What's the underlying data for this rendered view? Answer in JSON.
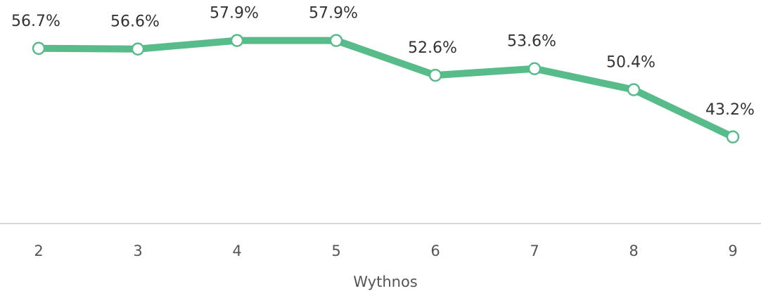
{
  "chart_data": {
    "type": "line",
    "categories": [
      "2",
      "3",
      "4",
      "5",
      "6",
      "7",
      "8",
      "9"
    ],
    "values": [
      56.7,
      56.6,
      57.9,
      57.9,
      52.6,
      53.6,
      50.4,
      43.2
    ],
    "value_labels": [
      "56.7%",
      "56.6%",
      "57.9%",
      "57.9%",
      "52.6%",
      "53.6%",
      "50.4%",
      "43.2%"
    ],
    "color": "#57bb8a",
    "x_label": "Wythnos",
    "ylim": [
      30,
      60
    ]
  }
}
